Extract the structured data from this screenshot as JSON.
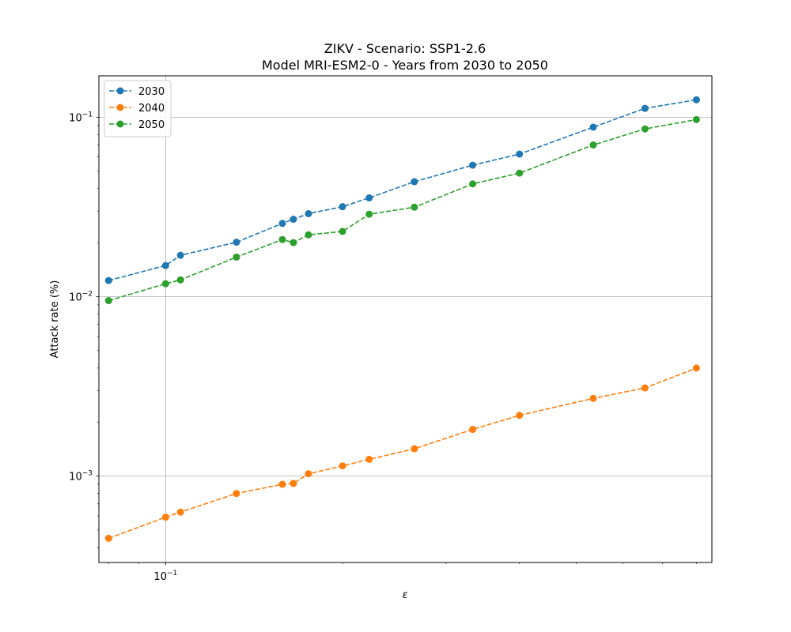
{
  "chart_data": {
    "type": "line",
    "title": "ZIKV - Scenario: SSP1-2.6",
    "subtitle": "Model MRI-ESM2-0 - Years from 2030 to 2050",
    "xlabel": "ε",
    "ylabel": "Attack rate (%)",
    "xscale": "log",
    "yscale": "log",
    "xlim": [
      0.077,
      0.85
    ],
    "ylim": [
      0.00033,
      0.17
    ],
    "grid": true,
    "legend_position": "upper-left",
    "line_style": "dashed",
    "marker": "circle",
    "x_tick_labels": [
      {
        "value": 0.1,
        "base": "10",
        "exp": "−1"
      }
    ],
    "y_tick_labels": [
      {
        "value": 0.1,
        "base": "10",
        "exp": "−1"
      },
      {
        "value": 0.01,
        "base": "10",
        "exp": "−2"
      },
      {
        "value": 0.001,
        "base": "10",
        "exp": "−3"
      }
    ],
    "x": [
      0.08,
      0.1,
      0.106,
      0.132,
      0.158,
      0.165,
      0.175,
      0.2,
      0.222,
      0.265,
      0.333,
      0.4,
      0.534,
      0.654,
      0.8
    ],
    "series": [
      {
        "name": "2030",
        "color": "#1f77b4",
        "values": [
          0.0123,
          0.0149,
          0.017,
          0.0201,
          0.0256,
          0.027,
          0.029,
          0.0317,
          0.0355,
          0.0437,
          0.054,
          0.0623,
          0.088,
          0.112,
          0.125
        ]
      },
      {
        "name": "2040",
        "color": "#ff7f0e",
        "values": [
          0.00045,
          0.00059,
          0.00063,
          0.0008,
          0.0009,
          0.00091,
          0.00103,
          0.00114,
          0.00124,
          0.00142,
          0.00182,
          0.00218,
          0.00271,
          0.0031,
          0.004
        ]
      },
      {
        "name": "2050",
        "color": "#2ca02c",
        "values": [
          0.0095,
          0.0118,
          0.0124,
          0.0166,
          0.0208,
          0.02,
          0.0221,
          0.0231,
          0.0288,
          0.0315,
          0.0425,
          0.0488,
          0.07,
          0.086,
          0.097
        ]
      }
    ]
  }
}
